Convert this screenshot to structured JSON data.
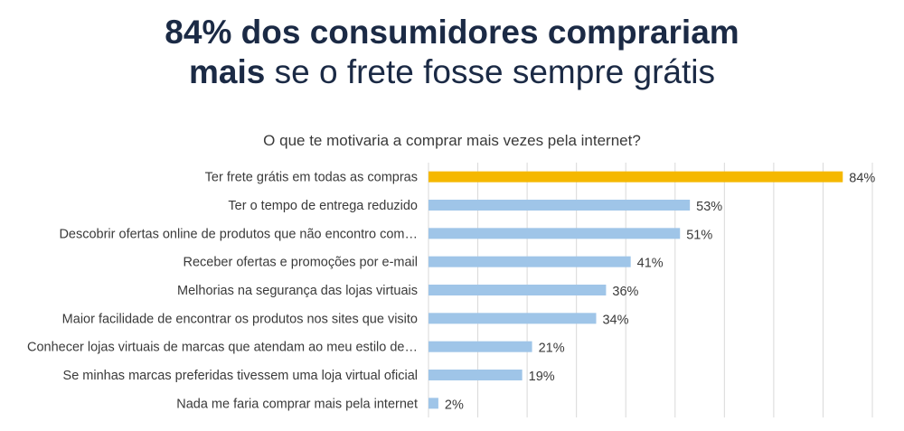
{
  "headline": {
    "line1": "84% dos consumidores comprariam",
    "line2_bold": "mais",
    "line2_rest": " se o frete fosse sempre grátis"
  },
  "chart_data": {
    "type": "bar",
    "orientation": "horizontal",
    "title": "O que te motivaria a comprar mais vezes pela internet?",
    "categories": [
      "Ter frete grátis em todas as compras",
      "Ter o tempo de entrega reduzido",
      "Descobrir ofertas online de produtos que não encontro com…",
      "Receber ofertas e promoções por e-mail",
      "Melhorias na segurança das lojas virtuais",
      "Maior facilidade de encontrar os produtos nos sites que visito",
      "Conhecer lojas virtuais de marcas que atendam ao meu estilo de…",
      "Se minhas marcas preferidas tivessem uma loja virtual oficial",
      "Nada me faria comprar mais pela internet"
    ],
    "values": [
      84,
      53,
      51,
      41,
      36,
      34,
      21,
      19,
      2
    ],
    "data_labels": [
      "84%",
      "53%",
      "51%",
      "41%",
      "36%",
      "34%",
      "21%",
      "19%",
      "2%"
    ],
    "xlim": [
      0,
      90
    ],
    "grid": true,
    "colors": {
      "highlight": "#f5b800",
      "default": "#9fc5e8",
      "grid": "#d9d9d9"
    }
  }
}
